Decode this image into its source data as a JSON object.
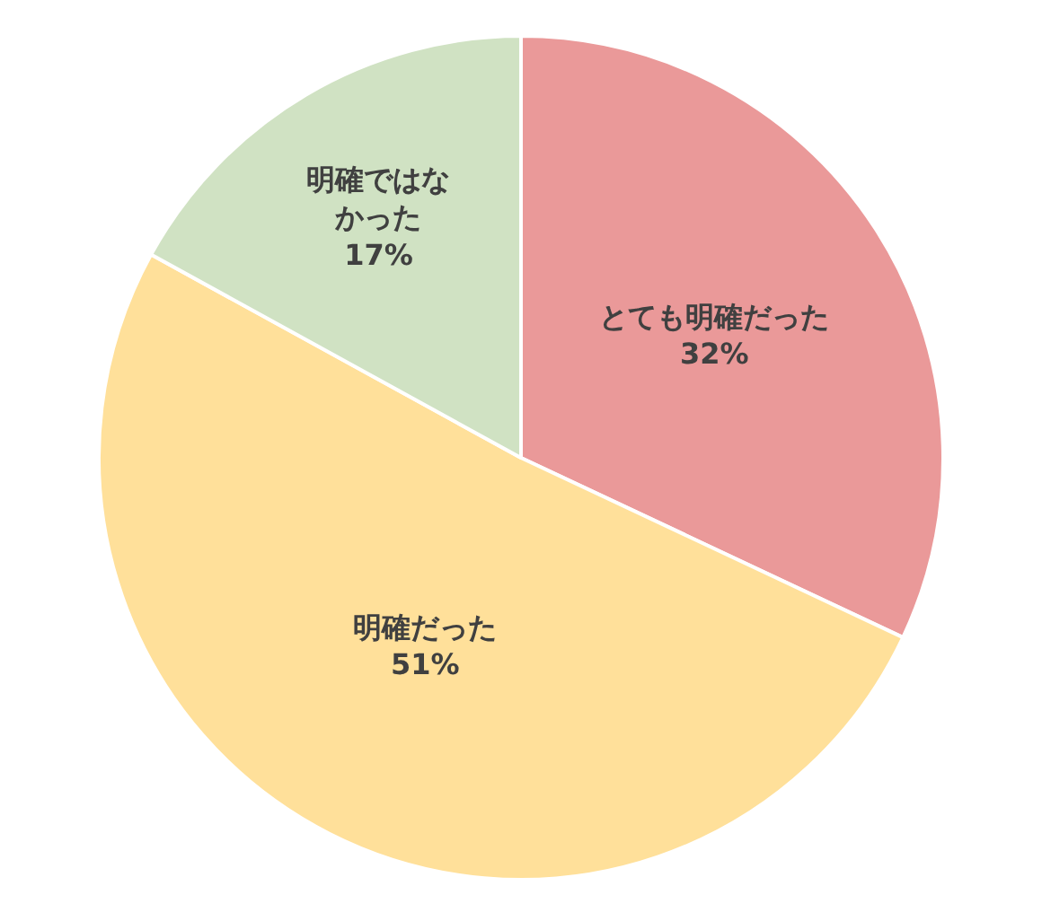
{
  "chart_data": {
    "type": "pie",
    "categories": [
      "とても明確だった",
      "明確だった",
      "明確ではなかった"
    ],
    "values": [
      32,
      51,
      17
    ],
    "value_labels": [
      "32%",
      "51%",
      "17%"
    ],
    "colors": [
      "#ea9999",
      "#ffe09a",
      "#d0e2c3"
    ],
    "legend": false
  }
}
